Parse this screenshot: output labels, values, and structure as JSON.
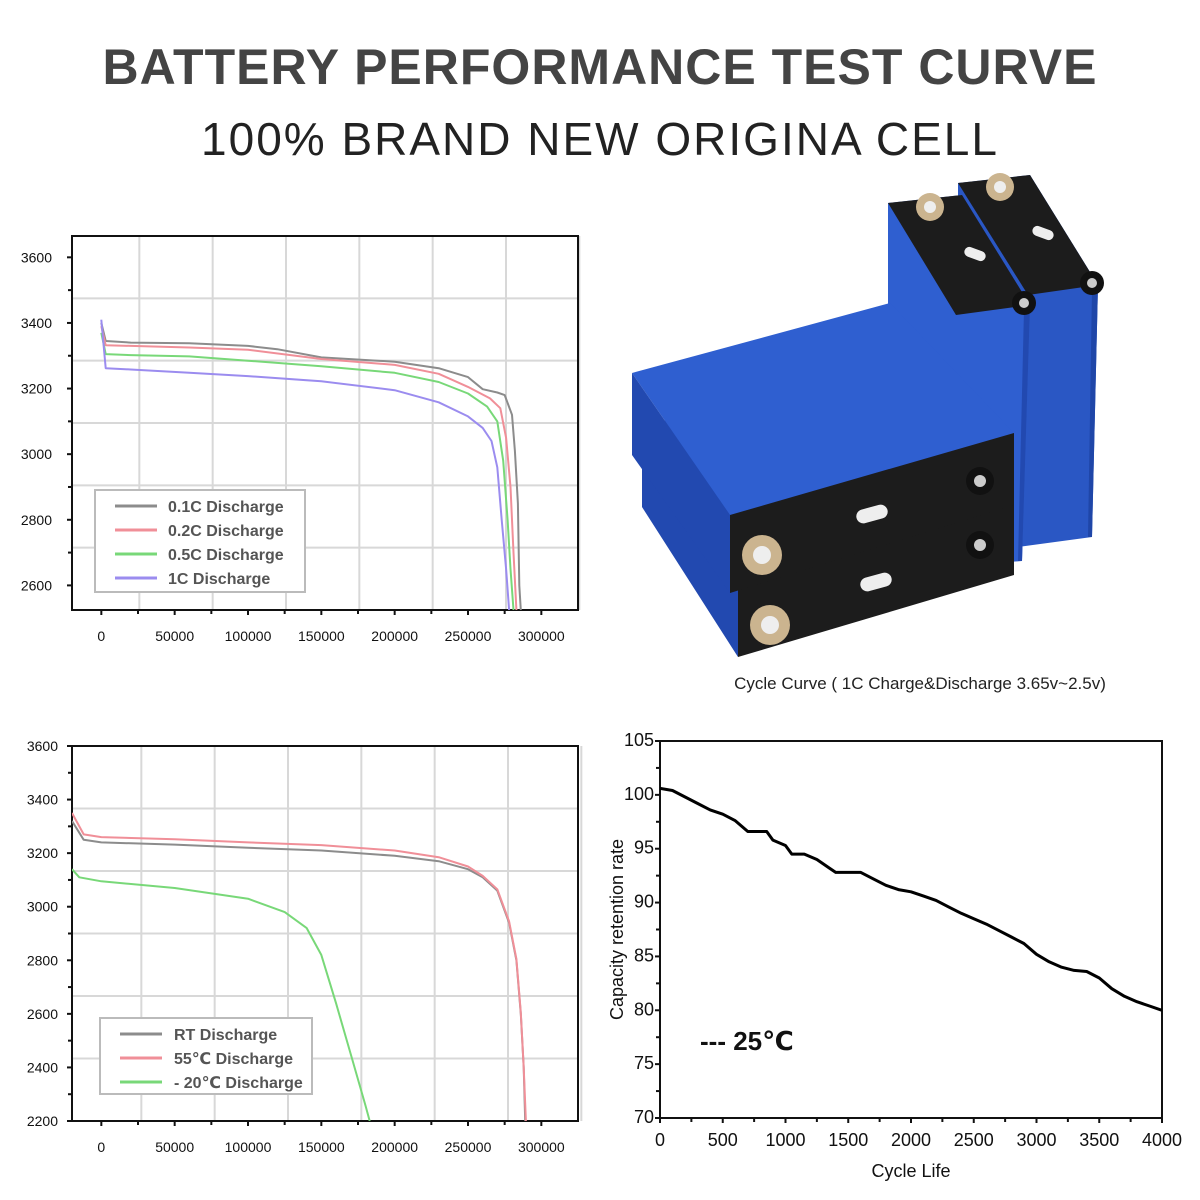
{
  "header": {
    "title": "BATTERY PERFORMANCE TEST CURVE",
    "subtitle": "100% BRAND NEW ORIGINA CELL"
  },
  "product": {
    "caption": "Cycle Curve ( 1C Charge&Discharge 3.65v~2.5v)"
  },
  "colors": {
    "battery_blue": "#2a57c4",
    "battery_black": "#1c1c1c",
    "terminal": "#cbb48f"
  },
  "chart_data": [
    {
      "type": "line",
      "title": "",
      "xlabel": "",
      "ylabel": "",
      "xlim": [
        -20000,
        325000
      ],
      "ylim": [
        2525,
        3665
      ],
      "x_ticks": [
        0,
        50000,
        100000,
        150000,
        200000,
        250000,
        300000
      ],
      "y_ticks": [
        2600,
        2800,
        3000,
        3200,
        3400,
        3600
      ],
      "grid": true,
      "legend": "bottom-left",
      "series": [
        {
          "name": "0.1C Discharge",
          "color": "#8c8c8c",
          "points": [
            [
              0,
              3400
            ],
            [
              3000,
              3345
            ],
            [
              20000,
              3340
            ],
            [
              60000,
              3338
            ],
            [
              100000,
              3330
            ],
            [
              120000,
              3320
            ],
            [
              150000,
              3295
            ],
            [
              200000,
              3282
            ],
            [
              230000,
              3262
            ],
            [
              250000,
              3235
            ],
            [
              260000,
              3198
            ],
            [
              270000,
              3188
            ],
            [
              275000,
              3180
            ],
            [
              280000,
              3120
            ],
            [
              282000,
              3010
            ],
            [
              284000,
              2850
            ],
            [
              285000,
              2600
            ],
            [
              286000,
              2525
            ]
          ]
        },
        {
          "name": "0.2C Discharge",
          "color": "#f08f98",
          "points": [
            [
              0,
              3390
            ],
            [
              3000,
              3332
            ],
            [
              20000,
              3330
            ],
            [
              60000,
              3325
            ],
            [
              100000,
              3318
            ],
            [
              150000,
              3290
            ],
            [
              200000,
              3272
            ],
            [
              230000,
              3245
            ],
            [
              250000,
              3205
            ],
            [
              265000,
              3170
            ],
            [
              272000,
              3140
            ],
            [
              276000,
              3050
            ],
            [
              279000,
              2900
            ],
            [
              281000,
              2700
            ],
            [
              283000,
              2525
            ]
          ]
        },
        {
          "name": "0.5C Discharge",
          "color": "#78d878",
          "points": [
            [
              0,
              3370
            ],
            [
              3000,
              3305
            ],
            [
              20000,
              3302
            ],
            [
              60000,
              3298
            ],
            [
              100000,
              3285
            ],
            [
              150000,
              3268
            ],
            [
              200000,
              3248
            ],
            [
              230000,
              3220
            ],
            [
              250000,
              3185
            ],
            [
              263000,
              3145
            ],
            [
              270000,
              3100
            ],
            [
              274000,
              2980
            ],
            [
              277000,
              2800
            ],
            [
              279000,
              2650
            ],
            [
              281000,
              2525
            ]
          ]
        },
        {
          "name": "1C Discharge",
          "color": "#9b8cef",
          "points": [
            [
              0,
              3410
            ],
            [
              3000,
              3262
            ],
            [
              20000,
              3258
            ],
            [
              60000,
              3248
            ],
            [
              100000,
              3238
            ],
            [
              150000,
              3222
            ],
            [
              200000,
              3195
            ],
            [
              230000,
              3158
            ],
            [
              250000,
              3115
            ],
            [
              260000,
              3080
            ],
            [
              266000,
              3040
            ],
            [
              270000,
              2960
            ],
            [
              273000,
              2800
            ],
            [
              276000,
              2650
            ],
            [
              278000,
              2525
            ]
          ]
        }
      ]
    },
    {
      "type": "line",
      "title": "",
      "xlabel": "",
      "ylabel": "",
      "xlim": [
        -20000,
        325000
      ],
      "ylim": [
        2200,
        3600
      ],
      "x_ticks": [
        0,
        50000,
        100000,
        150000,
        200000,
        250000,
        300000
      ],
      "y_ticks": [
        2200,
        2400,
        2600,
        2800,
        3000,
        3200,
        3400,
        3600
      ],
      "grid": true,
      "legend": "bottom-left",
      "series": [
        {
          "name": "RT Discharge",
          "color": "#8c8c8c",
          "points": [
            [
              -20000,
              3320
            ],
            [
              -12000,
              3250
            ],
            [
              0,
              3240
            ],
            [
              50000,
              3232
            ],
            [
              100000,
              3220
            ],
            [
              150000,
              3210
            ],
            [
              200000,
              3190
            ],
            [
              230000,
              3170
            ],
            [
              250000,
              3140
            ],
            [
              260000,
              3110
            ],
            [
              270000,
              3060
            ],
            [
              278000,
              2940
            ],
            [
              283000,
              2800
            ],
            [
              286000,
              2600
            ],
            [
              288000,
              2400
            ],
            [
              289000,
              2200
            ]
          ]
        },
        {
          "name": "55℃ Discharge",
          "color": "#f08f98",
          "points": [
            [
              -20000,
              3350
            ],
            [
              -12000,
              3270
            ],
            [
              0,
              3260
            ],
            [
              50000,
              3252
            ],
            [
              100000,
              3240
            ],
            [
              150000,
              3230
            ],
            [
              200000,
              3210
            ],
            [
              230000,
              3185
            ],
            [
              250000,
              3150
            ],
            [
              260000,
              3115
            ],
            [
              270000,
              3065
            ],
            [
              278000,
              2945
            ],
            [
              283000,
              2805
            ],
            [
              286000,
              2605
            ],
            [
              288000,
              2400
            ],
            [
              289500,
              2200
            ]
          ]
        },
        {
          "name": "- 20℃ Discharge",
          "color": "#78d878",
          "points": [
            [
              -20000,
              3140
            ],
            [
              -15000,
              3110
            ],
            [
              0,
              3095
            ],
            [
              50000,
              3070
            ],
            [
              100000,
              3030
            ],
            [
              125000,
              2980
            ],
            [
              140000,
              2920
            ],
            [
              150000,
              2820
            ],
            [
              160000,
              2640
            ],
            [
              170000,
              2450
            ],
            [
              180000,
              2260
            ],
            [
              183000,
              2200
            ]
          ]
        }
      ]
    },
    {
      "type": "line",
      "title": "",
      "xlabel": "Cycle Life",
      "ylabel": "Capacity retention rate",
      "xlim": [
        0,
        4000
      ],
      "ylim": [
        70,
        105
      ],
      "x_ticks": [
        0,
        500,
        1000,
        1500,
        2000,
        2500,
        3000,
        3500,
        4000
      ],
      "y_ticks": [
        70,
        75,
        80,
        85,
        90,
        95,
        100,
        105
      ],
      "grid": false,
      "legend": "inside-left",
      "series": [
        {
          "name": "--- 25℃",
          "color": "#000000",
          "points": [
            [
              0,
              100.6
            ],
            [
              100,
              100.4
            ],
            [
              200,
              99.8
            ],
            [
              300,
              99.2
            ],
            [
              400,
              98.6
            ],
            [
              500,
              98.2
            ],
            [
              600,
              97.6
            ],
            [
              700,
              96.6
            ],
            [
              850,
              96.6
            ],
            [
              900,
              95.8
            ],
            [
              1000,
              95.3
            ],
            [
              1050,
              94.5
            ],
            [
              1150,
              94.5
            ],
            [
              1250,
              94.0
            ],
            [
              1350,
              93.2
            ],
            [
              1400,
              92.8
            ],
            [
              1600,
              92.8
            ],
            [
              1700,
              92.2
            ],
            [
              1800,
              91.6
            ],
            [
              1900,
              91.2
            ],
            [
              2000,
              91.0
            ],
            [
              2100,
              90.6
            ],
            [
              2200,
              90.2
            ],
            [
              2300,
              89.6
            ],
            [
              2400,
              89.0
            ],
            [
              2500,
              88.5
            ],
            [
              2600,
              88.0
            ],
            [
              2700,
              87.4
            ],
            [
              2800,
              86.8
            ],
            [
              2900,
              86.2
            ],
            [
              3000,
              85.2
            ],
            [
              3100,
              84.5
            ],
            [
              3200,
              84.0
            ],
            [
              3300,
              83.7
            ],
            [
              3400,
              83.6
            ],
            [
              3500,
              83.0
            ],
            [
              3600,
              82.0
            ],
            [
              3700,
              81.3
            ],
            [
              3800,
              80.8
            ],
            [
              3900,
              80.4
            ],
            [
              4000,
              80.0
            ]
          ]
        }
      ]
    }
  ]
}
